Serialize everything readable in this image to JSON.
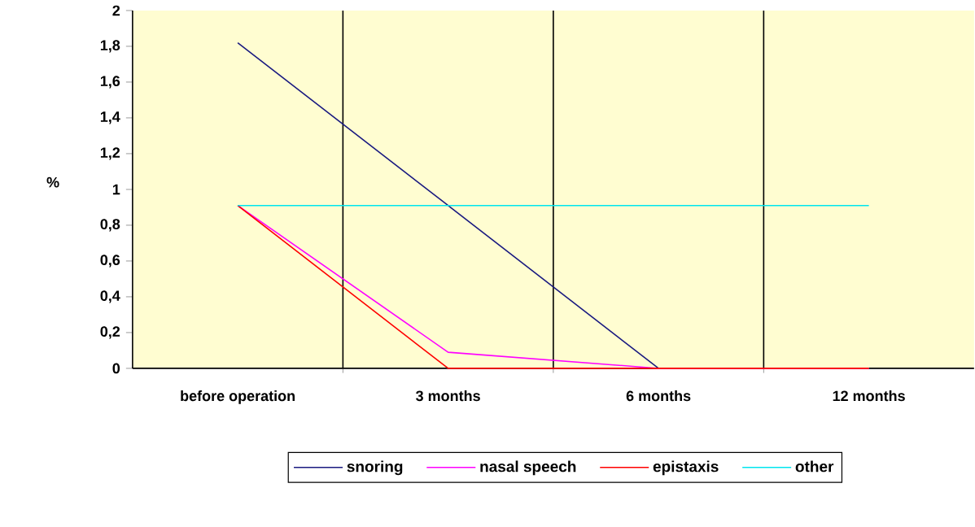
{
  "chart_data": {
    "type": "line",
    "ylabel": "%",
    "categories": [
      "before operation",
      "3 months",
      "6 months",
      "12 months"
    ],
    "series": [
      {
        "name": "snoring",
        "color": "#1a1a80",
        "values": [
          1.82,
          0.91,
          0,
          0
        ]
      },
      {
        "name": "nasal speech",
        "color": "#ff00ff",
        "values": [
          0.91,
          0.09,
          0,
          0
        ]
      },
      {
        "name": "epistaxis",
        "color": "#ff0000",
        "values": [
          0.91,
          0,
          0,
          0
        ]
      },
      {
        "name": "other",
        "color": "#00e5ee",
        "values": [
          0.91,
          0.91,
          0.91,
          0.91
        ]
      }
    ],
    "ylim": [
      0,
      2
    ],
    "yticks": [
      0,
      {
        "value": 0.2,
        "label": "0,2"
      },
      {
        "value": 0.4,
        "label": "0,4"
      },
      {
        "value": 0.6,
        "label": "0,6"
      },
      {
        "value": 0.8,
        "label": "0,8"
      },
      1,
      {
        "value": 1.2,
        "label": "1,2"
      },
      {
        "value": 1.4,
        "label": "1,4"
      },
      {
        "value": 1.6,
        "label": "1,6"
      },
      {
        "value": 1.8,
        "label": "1,8"
      },
      2
    ],
    "grid": "x",
    "legend": "bottom",
    "marker": "none",
    "line_style": "solid"
  }
}
